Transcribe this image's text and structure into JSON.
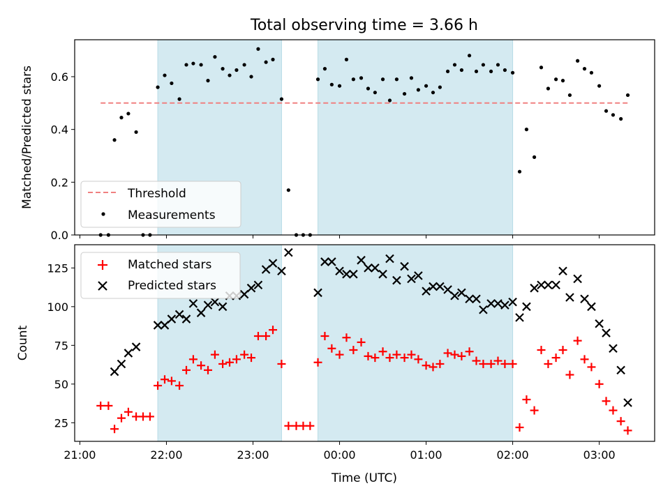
{
  "chart_data": [
    {
      "type": "scatter",
      "title": "Total observing time = 3.66 h",
      "ylabel": "Matched/Predicted stars",
      "xlabel": "",
      "x_unit": "hours since 21:00 UTC",
      "xlim": [
        -0.06,
        6.64
      ],
      "ylim": [
        0,
        0.74
      ],
      "yticks": [
        0.0,
        0.2,
        0.4,
        0.6
      ],
      "ytick_labels": [
        "0.0",
        "0.2",
        "0.4",
        "0.6"
      ],
      "shaded_regions": [
        [
          0.9,
          2.33
        ],
        [
          2.75,
          5.0
        ]
      ],
      "shade_color": "#d4eaf1",
      "legend": {
        "loc": "lower left",
        "entries": [
          "Threshold",
          "Measurements"
        ]
      },
      "series": [
        {
          "name": "Threshold",
          "kind": "hline",
          "y": 0.5,
          "x": [
            0.24,
            6.33
          ],
          "color": "#f08080",
          "style": "dashed"
        },
        {
          "name": "Measurements",
          "kind": "points",
          "color": "#000000",
          "x": [
            0.24,
            0.33,
            0.4,
            0.48,
            0.56,
            0.65,
            0.73,
            0.81,
            0.9,
            0.98,
            1.06,
            1.15,
            1.23,
            1.31,
            1.4,
            1.48,
            1.56,
            1.65,
            1.73,
            1.81,
            1.9,
            1.98,
            2.06,
            2.15,
            2.23,
            2.33,
            2.41,
            2.5,
            2.58,
            2.66,
            2.75,
            2.83,
            2.91,
            3.0,
            3.08,
            3.16,
            3.25,
            3.33,
            3.41,
            3.5,
            3.58,
            3.66,
            3.75,
            3.83,
            3.91,
            4.0,
            4.08,
            4.16,
            4.25,
            4.33,
            4.41,
            4.5,
            4.58,
            4.66,
            4.75,
            4.83,
            4.91,
            5.0,
            5.08,
            5.16,
            5.25,
            5.33,
            5.41,
            5.5,
            5.58,
            5.66,
            5.75,
            5.83,
            5.91,
            6.0,
            6.08,
            6.16,
            6.25,
            6.33
          ],
          "y": [
            0.0,
            0.0,
            0.36,
            0.445,
            0.46,
            0.39,
            0.0,
            0.0,
            0.56,
            0.605,
            0.575,
            0.515,
            0.645,
            0.65,
            0.645,
            0.585,
            0.675,
            0.63,
            0.605,
            0.625,
            0.645,
            0.6,
            0.705,
            0.655,
            0.665,
            0.515,
            0.17,
            0.0,
            0.0,
            0.0,
            0.59,
            0.63,
            0.57,
            0.565,
            0.665,
            0.59,
            0.595,
            0.555,
            0.54,
            0.59,
            0.51,
            0.59,
            0.535,
            0.595,
            0.55,
            0.565,
            0.54,
            0.56,
            0.62,
            0.645,
            0.625,
            0.68,
            0.62,
            0.645,
            0.62,
            0.645,
            0.625,
            0.615,
            0.24,
            0.4,
            0.295,
            0.635,
            0.555,
            0.59,
            0.585,
            0.53,
            0.66,
            0.63,
            0.615,
            0.565,
            0.47,
            0.455,
            0.44,
            0.53
          ]
        }
      ]
    },
    {
      "type": "scatter",
      "title": "",
      "ylabel": "Count",
      "xlabel": "Time (UTC)",
      "x_unit": "hours since 21:00 UTC",
      "xlim": [
        -0.06,
        6.64
      ],
      "ylim": [
        13,
        140
      ],
      "xticks": [
        0,
        1,
        2,
        3,
        4,
        5,
        6
      ],
      "xtick_labels": [
        "21:00",
        "22:00",
        "23:00",
        "00:00",
        "01:00",
        "02:00",
        "03:00"
      ],
      "yticks": [
        25,
        50,
        75,
        100,
        125
      ],
      "ytick_labels": [
        "25",
        "50",
        "75",
        "100",
        "125"
      ],
      "shaded_regions": [
        [
          0.9,
          2.33
        ],
        [
          2.75,
          5.0
        ]
      ],
      "shade_color": "#d4eaf1",
      "legend": {
        "loc": "upper left",
        "entries": [
          "Matched stars",
          "Predicted stars"
        ]
      },
      "series": [
        {
          "name": "Matched stars",
          "marker": "plus",
          "color": "#ff0000",
          "x": [
            0.24,
            0.33,
            0.4,
            0.48,
            0.56,
            0.65,
            0.73,
            0.81,
            0.9,
            0.98,
            1.06,
            1.15,
            1.23,
            1.31,
            1.4,
            1.48,
            1.56,
            1.65,
            1.73,
            1.81,
            1.9,
            1.98,
            2.06,
            2.15,
            2.23,
            2.33,
            2.41,
            2.5,
            2.58,
            2.66,
            2.75,
            2.83,
            2.91,
            3.0,
            3.08,
            3.16,
            3.25,
            3.33,
            3.41,
            3.5,
            3.58,
            3.66,
            3.75,
            3.83,
            3.91,
            4.0,
            4.08,
            4.16,
            4.25,
            4.33,
            4.41,
            4.5,
            4.58,
            4.66,
            4.75,
            4.83,
            4.91,
            5.0,
            5.08,
            5.16,
            5.25,
            5.33,
            5.41,
            5.5,
            5.58,
            5.66,
            5.75,
            5.83,
            5.91,
            6.0,
            6.08,
            6.16,
            6.25,
            6.33
          ],
          "y": [
            36,
            36,
            21,
            28,
            32,
            29,
            29,
            29,
            49,
            53,
            52,
            49,
            59,
            66,
            62,
            59,
            69,
            63,
            64,
            66,
            69,
            67,
            81,
            81,
            85,
            63,
            23,
            23,
            23,
            23,
            64,
            81,
            73,
            69,
            80,
            72,
            77,
            68,
            67,
            71,
            67,
            69,
            67,
            69,
            66,
            62,
            61,
            63,
            70,
            69,
            68,
            71,
            65,
            63,
            63,
            65,
            63,
            63,
            22,
            40,
            33,
            72,
            63,
            67,
            72,
            56,
            78,
            66,
            61,
            50,
            39,
            33,
            26,
            20
          ]
        },
        {
          "name": "Predicted stars",
          "marker": "x",
          "color": "#000000",
          "x": [
            0.4,
            0.48,
            0.56,
            0.65,
            0.9,
            0.98,
            1.06,
            1.15,
            1.23,
            1.31,
            1.4,
            1.48,
            1.56,
            1.65,
            1.73,
            1.81,
            1.9,
            1.98,
            2.06,
            2.15,
            2.23,
            2.33,
            2.41,
            2.75,
            2.83,
            2.91,
            3.0,
            3.08,
            3.16,
            3.25,
            3.33,
            3.41,
            3.5,
            3.58,
            3.66,
            3.75,
            3.83,
            3.91,
            4.0,
            4.08,
            4.16,
            4.25,
            4.33,
            4.41,
            4.5,
            4.58,
            4.66,
            4.75,
            4.83,
            4.91,
            5.0,
            5.08,
            5.16,
            5.25,
            5.33,
            5.41,
            5.5,
            5.58,
            5.66,
            5.75,
            5.83,
            5.91,
            6.0,
            6.08,
            6.16,
            6.25,
            6.33
          ],
          "y": [
            58,
            63,
            70,
            74,
            88,
            88,
            92,
            95,
            92,
            102,
            96,
            101,
            103,
            100,
            107,
            107,
            108,
            112,
            114,
            124,
            128,
            123,
            135,
            109,
            129,
            129,
            123,
            121,
            121,
            130,
            125,
            125,
            121,
            131,
            117,
            126,
            118,
            120,
            110,
            113,
            113,
            111,
            107,
            109,
            105,
            105,
            98,
            102,
            102,
            101,
            103,
            93,
            100,
            112,
            114,
            114,
            114,
            123,
            106,
            118,
            105,
            100,
            89,
            83,
            73,
            59,
            38
          ]
        }
      ]
    }
  ]
}
